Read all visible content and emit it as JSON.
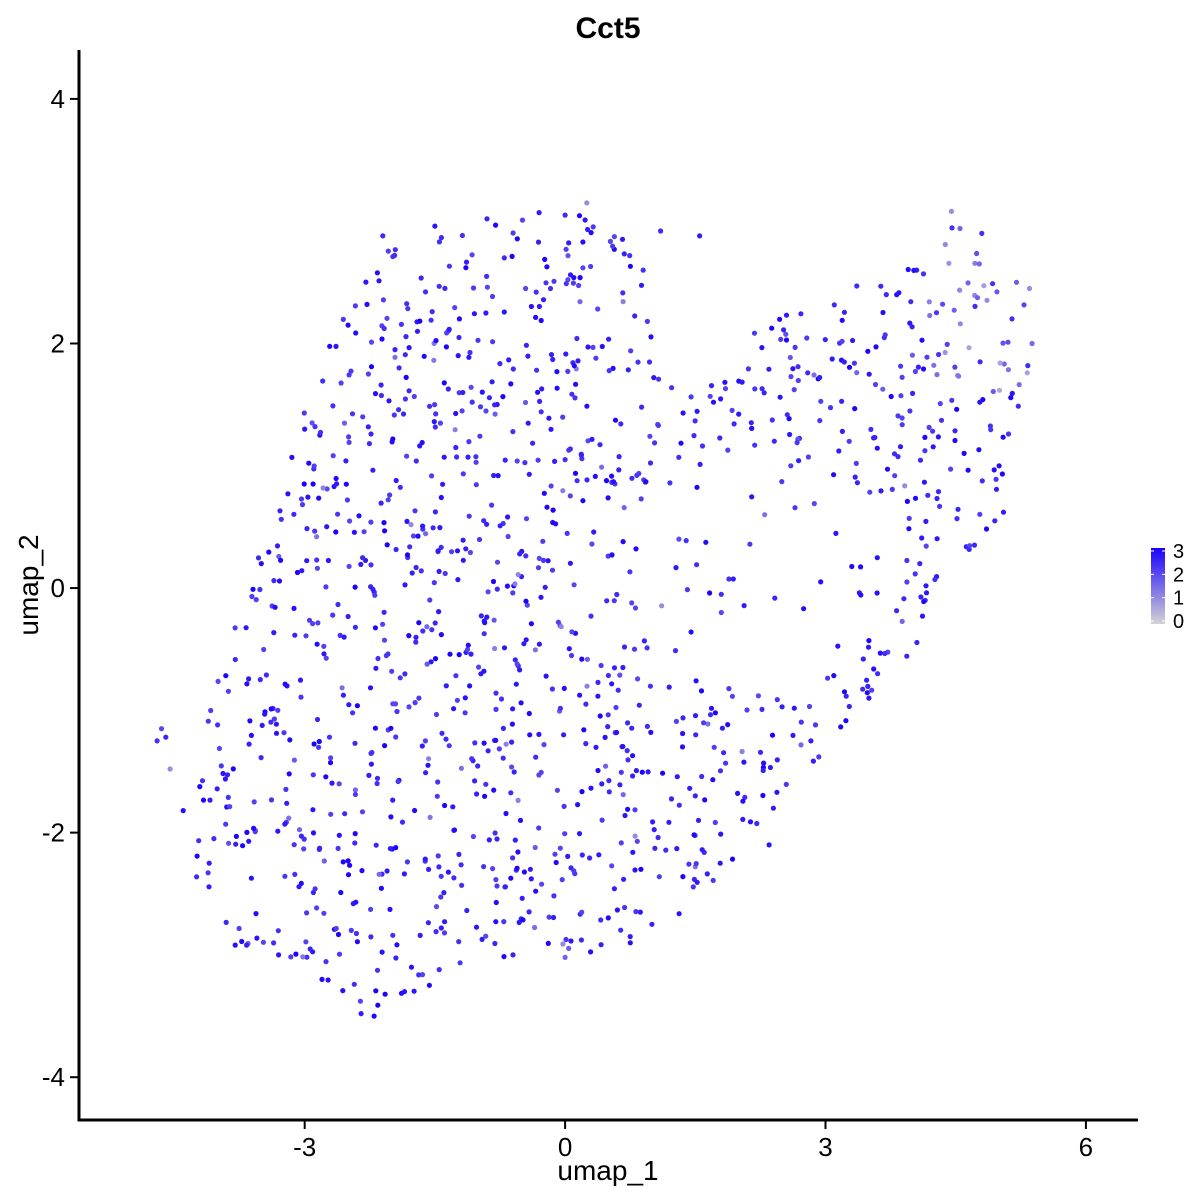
{
  "chart_data": {
    "type": "scatter",
    "title": "Cct5",
    "xlabel": "umap_1",
    "ylabel": "umap_2",
    "xlim": [
      -5.6,
      6.6
    ],
    "ylim": [
      -4.35,
      4.4
    ],
    "xticks": [
      -3,
      0,
      3,
      6
    ],
    "yticks": [
      -4,
      -2,
      0,
      2,
      4
    ],
    "xtick_labels": [
      "-3",
      "0",
      "3",
      "6"
    ],
    "ytick_labels": [
      "-4",
      "-2",
      "0",
      "2",
      "4"
    ],
    "grid": false,
    "legend": {
      "placement": "right",
      "kind": "colorbar",
      "min": 0,
      "max": 3,
      "ticks": [
        0,
        1,
        2,
        3
      ],
      "tick_labels": [
        "0",
        "1",
        "2",
        "3"
      ],
      "low_color": "#d3d3d3",
      "high_color": "#1a00ff"
    },
    "colors": {
      "low": "#d3d3d3",
      "high": "#1a00ff"
    },
    "n_points": 1400,
    "points": [
      [
        -4.7,
        -1.25,
        2.3
      ],
      [
        -4.65,
        -1.15,
        2.0
      ],
      [
        -4.6,
        -1.22,
        2.5
      ],
      [
        -4.55,
        -1.48,
        1.0
      ],
      [
        -4.4,
        -1.82,
        2.8
      ],
      [
        0.25,
        3.15,
        1.0
      ],
      [
        0.0,
        3.05,
        2.4
      ],
      [
        -0.3,
        3.07,
        2.6
      ],
      [
        -0.9,
        3.02,
        2.5
      ],
      [
        -1.5,
        2.96,
        2.7
      ],
      [
        -2.1,
        2.88,
        2.4
      ],
      [
        1.1,
        2.92,
        2.4
      ],
      [
        1.55,
        2.88,
        2.6
      ],
      [
        4.45,
        3.08,
        1.0
      ],
      [
        4.8,
        2.9,
        2.3
      ],
      [
        5.2,
        2.5,
        1.7
      ],
      [
        5.35,
        2.45,
        1.0
      ],
      [
        5.38,
        2.0,
        1.5
      ],
      [
        -4.1,
        -2.25,
        2.6
      ],
      [
        -3.8,
        -2.92,
        2.8
      ],
      [
        -3.3,
        -3.0,
        2.7
      ],
      [
        -2.8,
        -3.2,
        2.9
      ],
      [
        -2.35,
        -3.48,
        2.6
      ],
      [
        -2.2,
        -3.5,
        2.9
      ],
      [
        -1.85,
        -3.3,
        2.7
      ],
      [
        -1.45,
        -3.12,
        2.4
      ],
      [
        -0.6,
        -3.0,
        2.5
      ],
      [
        0.0,
        -3.02,
        1.6
      ],
      [
        0.75,
        -2.85,
        2.6
      ],
      [
        1.0,
        -2.75,
        2.5
      ],
      [
        2.35,
        -2.1,
        2.7
      ],
      [
        2.4,
        -1.8,
        2.6
      ],
      [
        3.5,
        -0.9,
        2.7
      ],
      [
        3.6,
        -0.7,
        2.4
      ],
      [
        4.15,
        -0.1,
        2.2
      ],
      [
        4.95,
        0.55,
        2.5
      ],
      [
        5.05,
        0.62,
        2.6
      ],
      [
        5.0,
        1.0,
        2.8
      ],
      [
        -3.5,
        0.2,
        2.8
      ],
      [
        -3.0,
        1.3,
        2.7
      ],
      [
        -2.5,
        2.15,
        2.9
      ],
      [
        -1.7,
        2.1,
        2.6
      ],
      [
        -0.7,
        2.7,
        2.4
      ],
      [
        0.9,
        2.6,
        2.3
      ],
      [
        3.7,
        2.4,
        2.4
      ],
      [
        4.05,
        2.6,
        2.5
      ],
      [
        2.6,
        1.0,
        2.2
      ],
      [
        2.3,
        0.6,
        1.4
      ],
      [
        1.8,
        -0.2,
        2.0
      ],
      [
        0.8,
        -0.5,
        2.2
      ],
      [
        -0.5,
        0.3,
        2.7
      ],
      [
        -1.1,
        -0.8,
        2.8
      ],
      [
        1.5,
        -1.7,
        2.5
      ],
      [
        -0.4,
        -2.3,
        2.6
      ]
    ]
  }
}
